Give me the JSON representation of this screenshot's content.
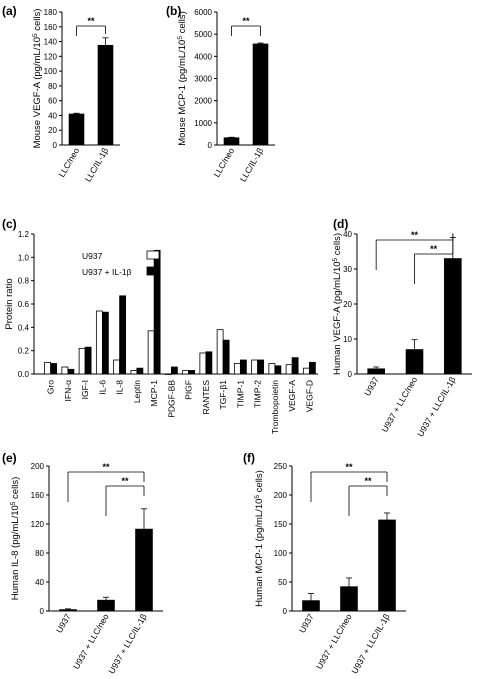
{
  "panels": {
    "a": "(a)",
    "b": "(b)",
    "c": "(c)",
    "d": "(d)",
    "e": "(e)",
    "f": "(f)"
  },
  "chart_data": [
    {
      "id": "a",
      "type": "bar",
      "categories": [
        "LLC/neo",
        "LLC/IL-1β"
      ],
      "values": [
        42,
        135
      ],
      "errors": [
        1,
        10
      ],
      "ylabel": "Mouse VEGF-A (pg/mL/10⁵ cells)",
      "ylim": [
        0,
        180
      ],
      "yticks": [
        0,
        20,
        40,
        60,
        80,
        100,
        120,
        140,
        160,
        180
      ],
      "significance": [
        {
          "from": 0,
          "to": 1,
          "label": "**"
        }
      ]
    },
    {
      "id": "b",
      "type": "bar",
      "categories": [
        "LLC/neo",
        "LLC/IL-1β"
      ],
      "values": [
        330,
        4560
      ],
      "errors": [
        20,
        40
      ],
      "ylabel": "Mouse MCP-1 (pg/mL/10⁵ cells)",
      "ylim": [
        0,
        6000
      ],
      "yticks": [
        0,
        1000,
        2000,
        3000,
        4000,
        5000,
        6000
      ],
      "significance": [
        {
          "from": 0,
          "to": 1,
          "label": "**"
        }
      ]
    },
    {
      "id": "c",
      "type": "bar",
      "categories": [
        "Gro",
        "IFN-α",
        "IGF-I",
        "IL-6",
        "IL-8",
        "Leptin",
        "MCP-1",
        "PDGF-BB",
        "PIGF",
        "RANTES",
        "TGF-β1",
        "TIMP-1",
        "TIMP-2",
        "Trombopoietin",
        "VEGF-A",
        "VEGF-D"
      ],
      "series": [
        {
          "name": "U937",
          "values": [
            0.1,
            0.06,
            0.22,
            0.54,
            0.12,
            0.03,
            0.37,
            0.0,
            0.03,
            0.18,
            0.38,
            0.09,
            0.12,
            0.09,
            0.08,
            0.05
          ]
        },
        {
          "name": "U937 + IL-1β",
          "values": [
            0.09,
            0.04,
            0.23,
            0.53,
            0.67,
            0.05,
            1.06,
            0.06,
            0.03,
            0.19,
            0.29,
            0.12,
            0.12,
            0.07,
            0.14,
            0.1
          ]
        }
      ],
      "ylabel": "Protein ratio",
      "ylim": [
        0,
        1.2
      ],
      "yticks": [
        0,
        0.2,
        0.4,
        0.6,
        0.8,
        1.0,
        1.2
      ],
      "ytick_labels": [
        "0.0",
        "0.2",
        "0.4",
        "0.6",
        "0.8",
        "1.0",
        "1.2"
      ]
    },
    {
      "id": "d",
      "type": "bar",
      "categories": [
        "U937",
        "U937 + LLC/neo",
        "U937 + LLC/IL-1β"
      ],
      "values": [
        1.5,
        7,
        33
      ],
      "errors": [
        0.5,
        2.8,
        6
      ],
      "ylabel": "Human VEGF-A (pg/mL/10⁵ cells)",
      "ylim": [
        0,
        40
      ],
      "yticks": [
        0,
        10,
        20,
        30,
        40
      ],
      "significance": [
        {
          "from": 0,
          "to": 2,
          "label": "**"
        },
        {
          "from": 1,
          "to": 2,
          "label": "**"
        }
      ]
    },
    {
      "id": "e",
      "type": "bar",
      "categories": [
        "U937",
        "U937 + LLC/neo",
        "U937 + LLC/IL-1β"
      ],
      "values": [
        2,
        15,
        113
      ],
      "errors": [
        1,
        4,
        28
      ],
      "ylabel": "Human IL-8 (pg/mL/10⁵ cells)",
      "ylim": [
        0,
        200
      ],
      "yticks": [
        0,
        40,
        80,
        120,
        160,
        200
      ],
      "significance": [
        {
          "from": 0,
          "to": 2,
          "label": "**"
        },
        {
          "from": 1,
          "to": 2,
          "label": "**"
        }
      ]
    },
    {
      "id": "f",
      "type": "bar",
      "categories": [
        "U937",
        "U937 + LLC/neo",
        "U937 + LLC/IL-1β"
      ],
      "values": [
        18,
        42,
        157
      ],
      "errors": [
        12,
        15,
        12
      ],
      "ylabel": "Human MCP-1 (pg/mL/10⁵ cells)",
      "ylim": [
        0,
        250
      ],
      "yticks": [
        0,
        50,
        100,
        150,
        200,
        250
      ],
      "significance": [
        {
          "from": 0,
          "to": 2,
          "label": "**"
        },
        {
          "from": 1,
          "to": 2,
          "label": "**"
        }
      ]
    }
  ]
}
